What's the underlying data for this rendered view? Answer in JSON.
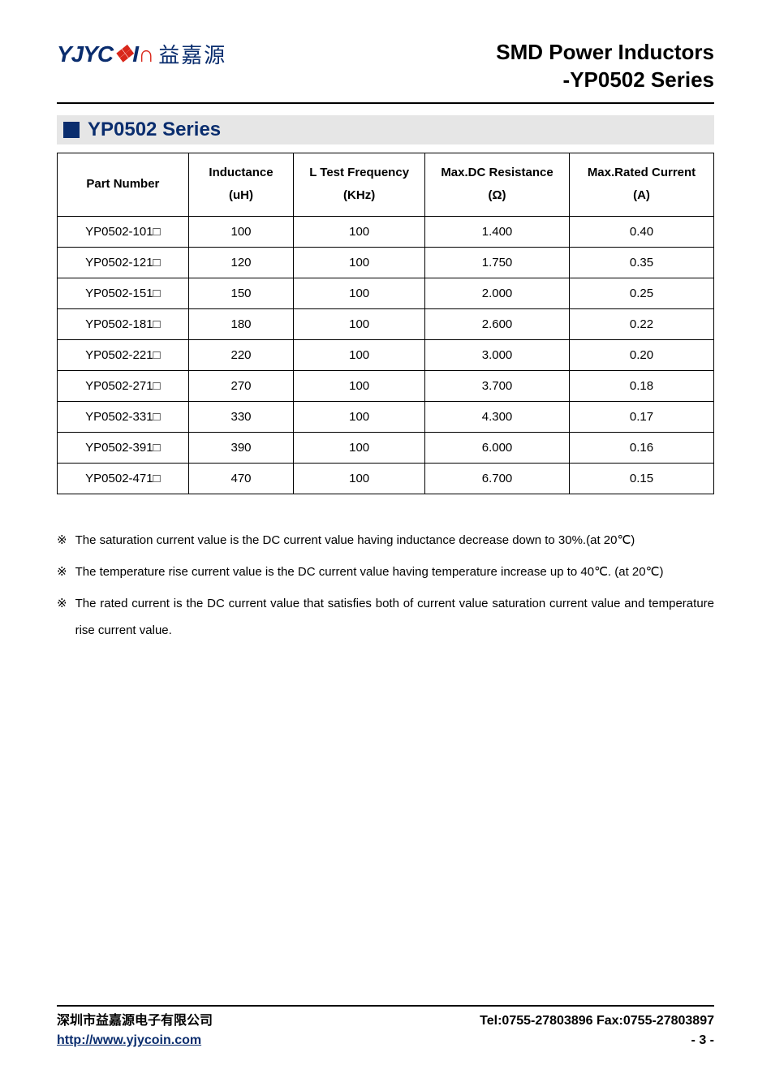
{
  "logo": {
    "text_html": "YJYC<span class='accent'>❖</span>I<span class='accent'>∩</span>",
    "cn": "益嘉源"
  },
  "doc_title_line1": "SMD Power Inductors",
  "doc_title_line2": "-YP0502 Series",
  "section_title": "YP0502 Series",
  "table": {
    "headers": {
      "part": {
        "l1": "Part Number",
        "l2": ""
      },
      "ind": {
        "l1": "Inductance",
        "l2": "(uH)"
      },
      "freq": {
        "l1": "L Test Frequency",
        "l2": "(KHz)"
      },
      "res": {
        "l1": "Max.DC Resistance",
        "l2": "(Ω)"
      },
      "cur": {
        "l1": "Max.Rated Current",
        "l2": "(A)"
      }
    },
    "rows": [
      {
        "part": "YP0502-101□",
        "ind": "100",
        "freq": "100",
        "res": "1.400",
        "cur": "0.40"
      },
      {
        "part": "YP0502-121□",
        "ind": "120",
        "freq": "100",
        "res": "1.750",
        "cur": "0.35"
      },
      {
        "part": "YP0502-151□",
        "ind": "150",
        "freq": "100",
        "res": "2.000",
        "cur": "0.25"
      },
      {
        "part": "YP0502-181□",
        "ind": "180",
        "freq": "100",
        "res": "2.600",
        "cur": "0.22"
      },
      {
        "part": "YP0502-221□",
        "ind": "220",
        "freq": "100",
        "res": "3.000",
        "cur": "0.20"
      },
      {
        "part": "YP0502-271□",
        "ind": "270",
        "freq": "100",
        "res": "3.700",
        "cur": "0.18"
      },
      {
        "part": "YP0502-331□",
        "ind": "330",
        "freq": "100",
        "res": "4.300",
        "cur": "0.17"
      },
      {
        "part": "YP0502-391□",
        "ind": "390",
        "freq": "100",
        "res": "6.000",
        "cur": "0.16"
      },
      {
        "part": "YP0502-471□",
        "ind": "470",
        "freq": "100",
        "res": "6.700",
        "cur": "0.15"
      }
    ]
  },
  "notes_marker": "※",
  "notes": [
    "The saturation current value is the DC current value having inductance decrease down to 30%.(at 20℃)",
    "The temperature rise current value is the DC current value having temperature increase up to 40℃. (at 20℃)",
    "The rated current is the DC current value that satisfies both of current value saturation current value and temperature rise current value."
  ],
  "footer": {
    "company": "深圳市益嘉源电子有限公司",
    "tel_fax": "Tel:0755-27803896   Fax:0755-27803897",
    "url": "http://www.yjycoin.com",
    "page": "- 3 -"
  },
  "style": {
    "brand_color": "#0a2d6e",
    "accent_color": "#d9271a",
    "section_bg": "#e6e6e6",
    "border_color": "#000000",
    "body_bg": "#ffffff",
    "font_body_pt": 15,
    "font_title_pt": 26,
    "font_section_pt": 24
  }
}
